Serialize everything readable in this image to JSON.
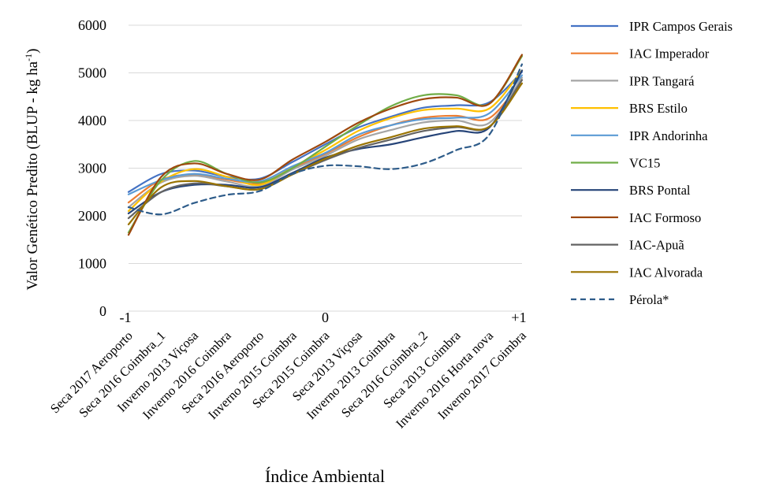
{
  "chart_data": {
    "type": "line",
    "ylabel": "Valor Genético Predito (BLUP - kg ha",
    "ylabel_sup": "-1",
    "ylabel_end": ")",
    "xlabel": "Índice Ambiental",
    "ylim": [
      0,
      6000
    ],
    "yticks": [
      0,
      1000,
      2000,
      3000,
      4000,
      5000,
      6000
    ],
    "index_labels": [
      "-1",
      "0",
      "+1"
    ],
    "grid": "horizontal",
    "legend_position": "right",
    "categories": [
      "Seca 2017 Aeroporto",
      "Seca 2016 Coimbra_1",
      "Inverno 2013 Viçosa",
      "Inverno 2016 Coimbra",
      "Seca 2016 Aeroporto",
      "Inverno 2015 Coimbra",
      "Seca 2015 Coimbra",
      "Seca 2013 Viçosa",
      "Inverno 2013 Coimbra",
      "Seca 2016 Coimbra_2",
      "Seca 2013 Coimbra",
      "Inverno 2016 Horta nova",
      "Inverno 2017 Coimbra"
    ],
    "series": [
      {
        "name": "IPR Campos Gerais",
        "color": "#4472C4",
        "dash": false,
        "values": [
          2500,
          2880,
          2950,
          2820,
          2780,
          3130,
          3500,
          3850,
          4080,
          4270,
          4320,
          4380,
          5020
        ]
      },
      {
        "name": "IAC Imperador",
        "color": "#ED7D31",
        "dash": false,
        "values": [
          2280,
          2760,
          2860,
          2760,
          2680,
          3000,
          3300,
          3650,
          3900,
          4060,
          4100,
          4050,
          4850
        ]
      },
      {
        "name": "IPR Tangará",
        "color": "#A5A5A5",
        "dash": false,
        "values": [
          2180,
          2700,
          2840,
          2720,
          2620,
          2970,
          3260,
          3600,
          3800,
          3960,
          4000,
          3950,
          4900
        ]
      },
      {
        "name": "BRS Estilo",
        "color": "#FFC000",
        "dash": false,
        "values": [
          2100,
          2720,
          2980,
          2820,
          2650,
          3020,
          3380,
          3780,
          4050,
          4220,
          4250,
          4250,
          5050
        ]
      },
      {
        "name": "IPR Andorinha",
        "color": "#5B9BD5",
        "dash": false,
        "values": [
          2450,
          2750,
          2880,
          2780,
          2720,
          3040,
          3320,
          3700,
          3900,
          4030,
          4060,
          4150,
          4950
        ]
      },
      {
        "name": "VC15",
        "color": "#70AD47",
        "dash": false,
        "values": [
          1650,
          2750,
          3150,
          2880,
          2700,
          3000,
          3450,
          3900,
          4300,
          4530,
          4530,
          4350,
          5350
        ]
      },
      {
        "name": "BRS Pontal",
        "color": "#264478",
        "dash": false,
        "values": [
          2050,
          2500,
          2650,
          2650,
          2600,
          2900,
          3220,
          3400,
          3500,
          3650,
          3780,
          3850,
          5050
        ]
      },
      {
        "name": "IAC Formoso",
        "color": "#9E480E",
        "dash": false,
        "values": [
          1600,
          2820,
          3100,
          2880,
          2760,
          3180,
          3550,
          3950,
          4250,
          4450,
          4480,
          4350,
          5380
        ]
      },
      {
        "name": "IAC-Apuã",
        "color": "#636363",
        "dash": false,
        "values": [
          1950,
          2500,
          2680,
          2620,
          2560,
          2870,
          3170,
          3420,
          3600,
          3780,
          3860,
          3870,
          4850
        ]
      },
      {
        "name": "IAC Alvorada",
        "color": "#997300",
        "dash": false,
        "values": [
          1820,
          2600,
          2730,
          2620,
          2560,
          2870,
          3200,
          3470,
          3650,
          3830,
          3880,
          3870,
          4780
        ]
      },
      {
        "name": "Pérola*",
        "color": "#2E5C8A",
        "dash": true,
        "values": [
          2180,
          2030,
          2270,
          2440,
          2520,
          2880,
          3050,
          3040,
          2980,
          3100,
          3380,
          3700,
          5180
        ]
      }
    ]
  }
}
